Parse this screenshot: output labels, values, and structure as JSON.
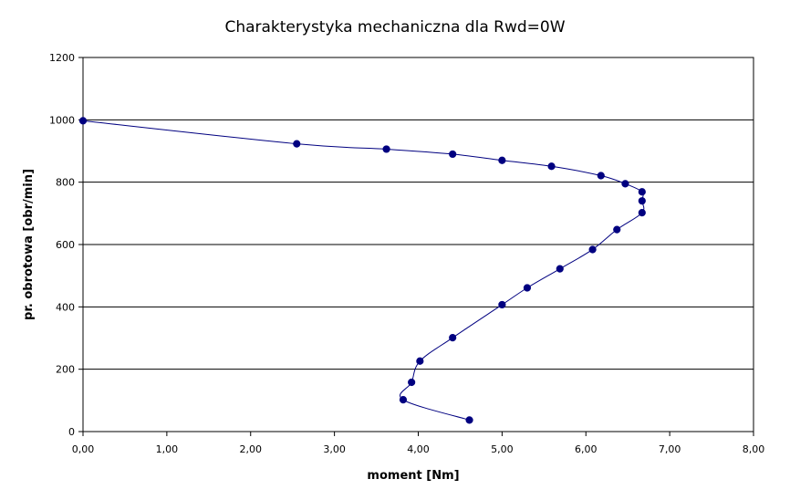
{
  "chart_data": {
    "type": "line",
    "title": "Charakterystyka mechaniczna dla Rwd=0W",
    "xlabel": "moment [Nm]",
    "ylabel": "pr. obrotowa [obr/min]",
    "xlim": [
      0,
      8
    ],
    "ylim": [
      0,
      1200
    ],
    "x_ticks": [
      "0,00",
      "1,00",
      "2,00",
      "3,00",
      "4,00",
      "5,00",
      "6,00",
      "7,00",
      "8,00"
    ],
    "y_ticks": [
      "0",
      "200",
      "400",
      "600",
      "800",
      "1000",
      "1200"
    ],
    "grid": "horizontal",
    "legend": "none",
    "series": [
      {
        "color": "#000080",
        "points": [
          {
            "x": 0.0,
            "y": 997
          },
          {
            "x": 2.55,
            "y": 923
          },
          {
            "x": 3.62,
            "y": 906
          },
          {
            "x": 4.41,
            "y": 890
          },
          {
            "x": 5.0,
            "y": 870
          },
          {
            "x": 5.59,
            "y": 851
          },
          {
            "x": 6.18,
            "y": 821
          },
          {
            "x": 6.47,
            "y": 795
          },
          {
            "x": 6.67,
            "y": 769
          },
          {
            "x": 6.67,
            "y": 740
          },
          {
            "x": 6.67,
            "y": 702
          },
          {
            "x": 6.37,
            "y": 648
          },
          {
            "x": 6.08,
            "y": 584
          },
          {
            "x": 5.69,
            "y": 522
          },
          {
            "x": 5.3,
            "y": 461
          },
          {
            "x": 5.0,
            "y": 407
          },
          {
            "x": 4.41,
            "y": 301
          },
          {
            "x": 4.02,
            "y": 226
          },
          {
            "x": 3.92,
            "y": 158
          },
          {
            "x": 3.82,
            "y": 102
          },
          {
            "x": 4.61,
            "y": 37
          }
        ]
      }
    ]
  }
}
